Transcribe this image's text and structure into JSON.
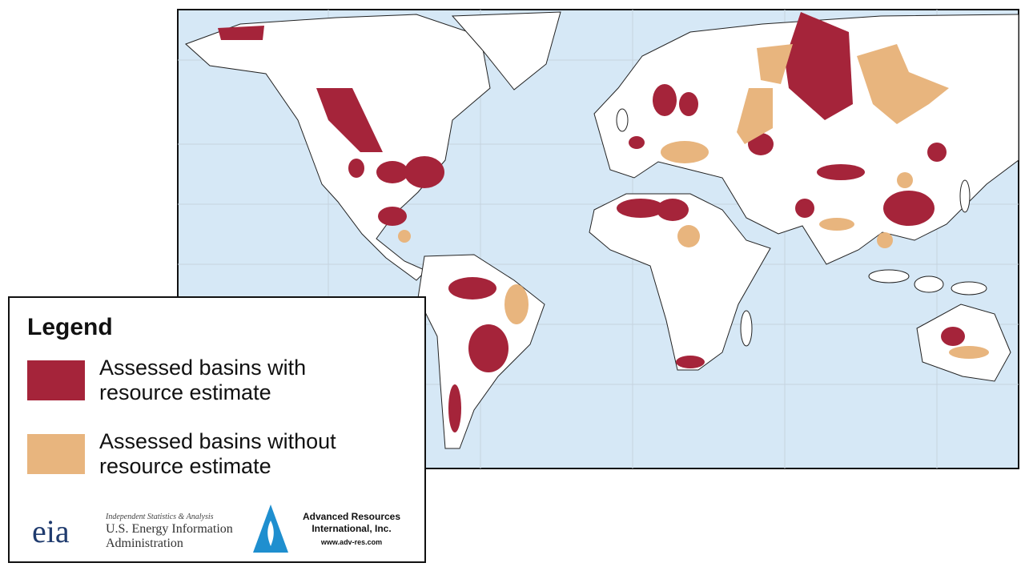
{
  "legend": {
    "title": "Legend",
    "items": [
      {
        "label": "Assessed basins with resource estimate",
        "color": "#a5243a"
      },
      {
        "label": "Assessed basins without resource estimate",
        "color": "#e8b57e"
      }
    ]
  },
  "logos": {
    "eia": {
      "mark": "eia",
      "tagline": "Independent Statistics & Analysis",
      "name": "U.S. Energy Information Administration"
    },
    "ari": {
      "name": "Advanced Resources International, Inc.",
      "url": "www.adv-res.com"
    }
  }
}
